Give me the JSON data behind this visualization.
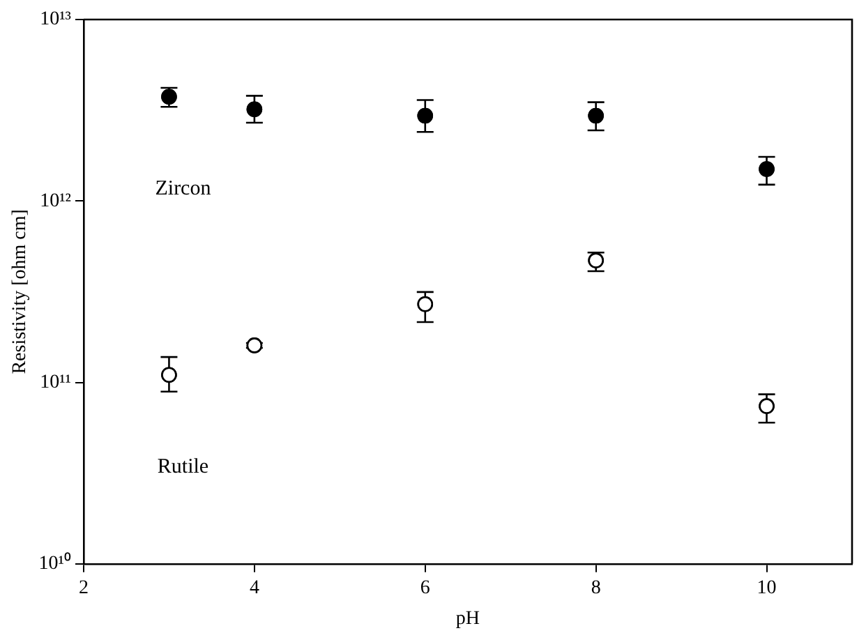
{
  "chart_data": {
    "type": "scatter",
    "xlabel": "pH",
    "ylabel": "Resistivity [ohm cm]",
    "log": "y",
    "grid": false,
    "legend": false,
    "marker": "circle",
    "xlim": [
      2,
      11
    ],
    "xticks": [
      2,
      4,
      6,
      8,
      10
    ],
    "ylim": [
      10000000000.0,
      10000000000000.0
    ],
    "yticks": [
      {
        "value": 10000000000.0,
        "label": "10¹⁰"
      },
      {
        "value": 100000000000.0,
        "label": "10¹¹"
      },
      {
        "value": 1000000000000.0,
        "label": "10¹²"
      },
      {
        "value": 10000000000000.0,
        "label": "10¹³"
      }
    ],
    "x": [
      3,
      4,
      6,
      8,
      10
    ],
    "annotations": [
      "Zircon",
      "Rutile"
    ],
    "series": [
      {
        "color": "#000000",
        "values": [
          3750000000000.0,
          3200000000000.0,
          2950000000000.0,
          2950000000000.0,
          1500000000000.0
        ],
        "errors": [
          [
            3300000000000.0,
            4200000000000.0
          ],
          [
            2700000000000.0,
            3800000000000.0
          ],
          [
            2400000000000.0,
            3600000000000.0
          ],
          [
            2450000000000.0,
            3500000000000.0
          ],
          [
            1230000000000.0,
            1750000000000.0
          ]
        ]
      },
      {
        "color": "#ffffff",
        "values": [
          110000000000.0,
          160000000000.0,
          270000000000.0,
          470000000000.0,
          74000000000.0
        ],
        "errors": [
          [
            89000000000.0,
            138000000000.0
          ],
          [
            155000000000.0,
            165000000000.0
          ],
          [
            215000000000.0,
            315000000000.0
          ],
          [
            410000000000.0,
            520000000000.0
          ],
          [
            60000000000.0,
            86000000000.0
          ]
        ]
      }
    ]
  }
}
